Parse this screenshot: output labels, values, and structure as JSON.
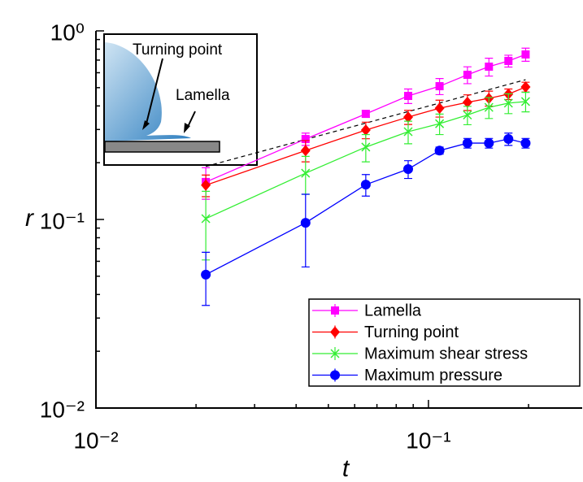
{
  "chart_data": {
    "type": "line",
    "log_x": true,
    "log_y": true,
    "x_label": "t",
    "y_label": "r",
    "x": [
      0.0214,
      0.0427,
      0.0648,
      0.0869,
      0.108,
      0.131,
      0.152,
      0.174,
      0.196
    ],
    "series": [
      {
        "name": "Lamella",
        "color": "#ff00ff",
        "marker": "square",
        "values": [
          0.158,
          0.267,
          0.363,
          0.452,
          0.509,
          0.585,
          0.646,
          0.693,
          0.75
        ],
        "errors": [
          0.03,
          0.02,
          0.015,
          0.04,
          0.05,
          0.06,
          0.07,
          0.05,
          0.06
        ]
      },
      {
        "name": "Turning point",
        "color": "#ff0000",
        "marker": "diamond",
        "values": [
          0.152,
          0.232,
          0.298,
          0.349,
          0.389,
          0.418,
          0.439,
          0.462,
          0.504
        ],
        "errors": [
          0.02,
          0.03,
          0.03,
          0.03,
          0.04,
          0.04,
          0.04,
          0.03,
          0.03
        ]
      },
      {
        "name": "Maximum shear stress",
        "color": "#33ee33",
        "marker": "x",
        "values": [
          0.101,
          0.176,
          0.242,
          0.292,
          0.322,
          0.358,
          0.393,
          0.414,
          0.422
        ],
        "errors": [
          0.04,
          0.04,
          0.04,
          0.04,
          0.04,
          0.04,
          0.05,
          0.05,
          0.05
        ]
      },
      {
        "name": "Maximum pressure",
        "color": "#0000ff",
        "marker": "circle",
        "values": [
          0.051,
          0.096,
          0.153,
          0.185,
          0.232,
          0.254,
          0.254,
          0.267,
          0.254
        ],
        "errors": [
          0.016,
          0.04,
          0.02,
          0.02,
          0.01,
          0.015,
          0.015,
          0.02,
          0.015
        ]
      }
    ],
    "reference_line": {
      "x": [
        0.0214,
        0.196
      ],
      "values": [
        0.191,
        0.551
      ],
      "color": "#000000"
    },
    "xlim": [
      0.01,
      0.29
    ],
    "ylim": [
      0.01,
      1
    ],
    "xticks": [
      {
        "value": 0.01,
        "label": "10⁻²"
      },
      {
        "value": 0.1,
        "label": "10⁻¹"
      }
    ],
    "yticks": [
      {
        "value": 0.01,
        "label": "10⁻²"
      },
      {
        "value": 0.1,
        "label": "10⁻¹"
      },
      {
        "value": 1,
        "label": "10⁰"
      }
    ],
    "legend_position": "lower right",
    "inset": {
      "labels": [
        "Turning point",
        "Lamella"
      ]
    }
  }
}
